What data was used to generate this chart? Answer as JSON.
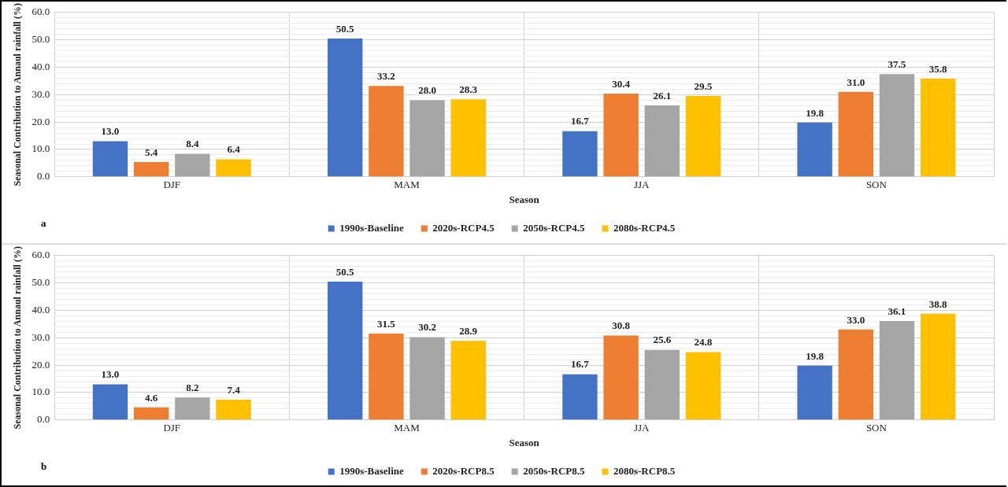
{
  "chart_data": [
    {
      "type": "bar",
      "categories": [
        "DJF",
        "MAM",
        "JJA",
        "SON"
      ],
      "xlabel": "Season",
      "ylabel": "Seasonal Contribution to Annaul rainfall (%)",
      "annotations": [
        "a"
      ],
      "series": [
        {
          "name": "1990s-Baseline",
          "color": "#4472c4",
          "values": [
            13.0,
            50.5,
            16.7,
            19.8
          ],
          "value_labels": [
            "13.0",
            "50.5",
            "16.7",
            "19.8"
          ]
        },
        {
          "name": "2020s-RCP4.5",
          "color": "#ed7d31",
          "values": [
            5.4,
            33.2,
            30.4,
            31.0
          ],
          "value_labels": [
            "5.4",
            "33.2",
            "30.4",
            "31.0"
          ]
        },
        {
          "name": "2050s-RCP4.5",
          "color": "#a5a5a5",
          "values": [
            8.4,
            28.0,
            26.1,
            37.5
          ],
          "value_labels": [
            "8.4",
            "28.0",
            "26.1",
            "37.5"
          ]
        },
        {
          "name": "2080s-RCP4.5",
          "color": "#ffc000",
          "values": [
            6.4,
            28.3,
            29.5,
            35.8
          ],
          "value_labels": [
            "6.4",
            "28.3",
            "29.5",
            "35.8"
          ]
        }
      ],
      "ylim": [
        0,
        60
      ],
      "yticks": [
        {
          "value": 0,
          "label": "0.0"
        },
        {
          "value": 2,
          "label": null
        },
        {
          "value": 4,
          "label": null
        },
        {
          "value": 6,
          "label": null
        },
        {
          "value": 8,
          "label": null
        },
        {
          "value": 10,
          "label": "10.0"
        },
        {
          "value": 12,
          "label": null
        },
        {
          "value": 14,
          "label": null
        },
        {
          "value": 16,
          "label": null
        },
        {
          "value": 18,
          "label": null
        },
        {
          "value": 20,
          "label": "20.0"
        },
        {
          "value": 22,
          "label": null
        },
        {
          "value": 24,
          "label": null
        },
        {
          "value": 26,
          "label": null
        },
        {
          "value": 28,
          "label": null
        },
        {
          "value": 30,
          "label": "30.0"
        },
        {
          "value": 32,
          "label": null
        },
        {
          "value": 34,
          "label": null
        },
        {
          "value": 36,
          "label": null
        },
        {
          "value": 38,
          "label": null
        },
        {
          "value": 40,
          "label": "40.0"
        },
        {
          "value": 42,
          "label": null
        },
        {
          "value": 44,
          "label": null
        },
        {
          "value": 46,
          "label": null
        },
        {
          "value": 48,
          "label": null
        },
        {
          "value": 50,
          "label": "50.0"
        },
        {
          "value": 52,
          "label": null
        },
        {
          "value": 54,
          "label": null
        },
        {
          "value": 56,
          "label": null
        },
        {
          "value": 58,
          "label": null
        },
        {
          "value": 60,
          "label": "60.0"
        }
      ],
      "grid": true,
      "legend": "bottom"
    },
    {
      "type": "bar",
      "categories": [
        "DJF",
        "MAM",
        "JJA",
        "SON"
      ],
      "xlabel": "Season",
      "ylabel": "Seasonal Contribution to Annaul rainfall (%)",
      "annotations": [
        "b"
      ],
      "series": [
        {
          "name": "1990s-Baseline",
          "color": "#4472c4",
          "values": [
            13.0,
            50.5,
            16.7,
            19.8
          ],
          "value_labels": [
            "13.0",
            "50.5",
            "16.7",
            "19.8"
          ]
        },
        {
          "name": "2020s-RCP8.5",
          "color": "#ed7d31",
          "values": [
            4.6,
            31.5,
            30.8,
            33.0
          ],
          "value_labels": [
            "4.6",
            "31.5",
            "30.8",
            "33.0"
          ]
        },
        {
          "name": "2050s-RCP8.5",
          "color": "#a5a5a5",
          "values": [
            8.2,
            30.2,
            25.6,
            36.1
          ],
          "value_labels": [
            "8.2",
            "30.2",
            "25.6",
            "36.1"
          ]
        },
        {
          "name": "2080s-RCP8.5",
          "color": "#ffc000",
          "values": [
            7.4,
            28.9,
            24.8,
            38.8
          ],
          "value_labels": [
            "7.4",
            "28.9",
            "24.8",
            "38.8"
          ]
        }
      ],
      "ylim": [
        0,
        60
      ],
      "yticks": [
        {
          "value": 0,
          "label": "0.0"
        },
        {
          "value": 2,
          "label": null
        },
        {
          "value": 4,
          "label": null
        },
        {
          "value": 6,
          "label": null
        },
        {
          "value": 8,
          "label": null
        },
        {
          "value": 10,
          "label": "10.0"
        },
        {
          "value": 12,
          "label": null
        },
        {
          "value": 14,
          "label": null
        },
        {
          "value": 16,
          "label": null
        },
        {
          "value": 18,
          "label": null
        },
        {
          "value": 20,
          "label": "20.0"
        },
        {
          "value": 22,
          "label": null
        },
        {
          "value": 24,
          "label": null
        },
        {
          "value": 26,
          "label": null
        },
        {
          "value": 28,
          "label": null
        },
        {
          "value": 30,
          "label": "30.0"
        },
        {
          "value": 32,
          "label": null
        },
        {
          "value": 34,
          "label": null
        },
        {
          "value": 36,
          "label": null
        },
        {
          "value": 38,
          "label": null
        },
        {
          "value": 40,
          "label": "40.0"
        },
        {
          "value": 42,
          "label": null
        },
        {
          "value": 44,
          "label": null
        },
        {
          "value": 46,
          "label": null
        },
        {
          "value": 48,
          "label": null
        },
        {
          "value": 50,
          "label": "50.0"
        },
        {
          "value": 52,
          "label": null
        },
        {
          "value": 54,
          "label": null
        },
        {
          "value": 56,
          "label": null
        },
        {
          "value": 58,
          "label": null
        },
        {
          "value": 60,
          "label": "60.0"
        }
      ],
      "grid": true,
      "legend": "bottom"
    }
  ]
}
